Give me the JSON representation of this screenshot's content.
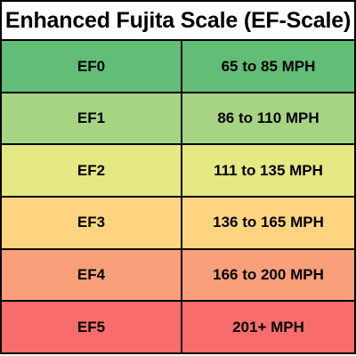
{
  "title": "Enhanced Fujita Scale (EF-Scale)",
  "rows": [
    {
      "rating": "EF0",
      "wind_speed": "65 to 85 MPH",
      "color": "#62bd77"
    },
    {
      "rating": "EF1",
      "wind_speed": "86 to 110 MPH",
      "color": "#a6d483"
    },
    {
      "rating": "EF2",
      "wind_speed": "111 to 135 MPH",
      "color": "#e5e883"
    },
    {
      "rating": "EF3",
      "wind_speed": "136 to 165 MPH",
      "color": "#fed480"
    },
    {
      "rating": "EF4",
      "wind_speed": "166 to 200 MPH",
      "color": "#f9a07a"
    },
    {
      "rating": "EF5",
      "wind_speed": "201+ MPH",
      "color": "#f86d6c"
    }
  ]
}
